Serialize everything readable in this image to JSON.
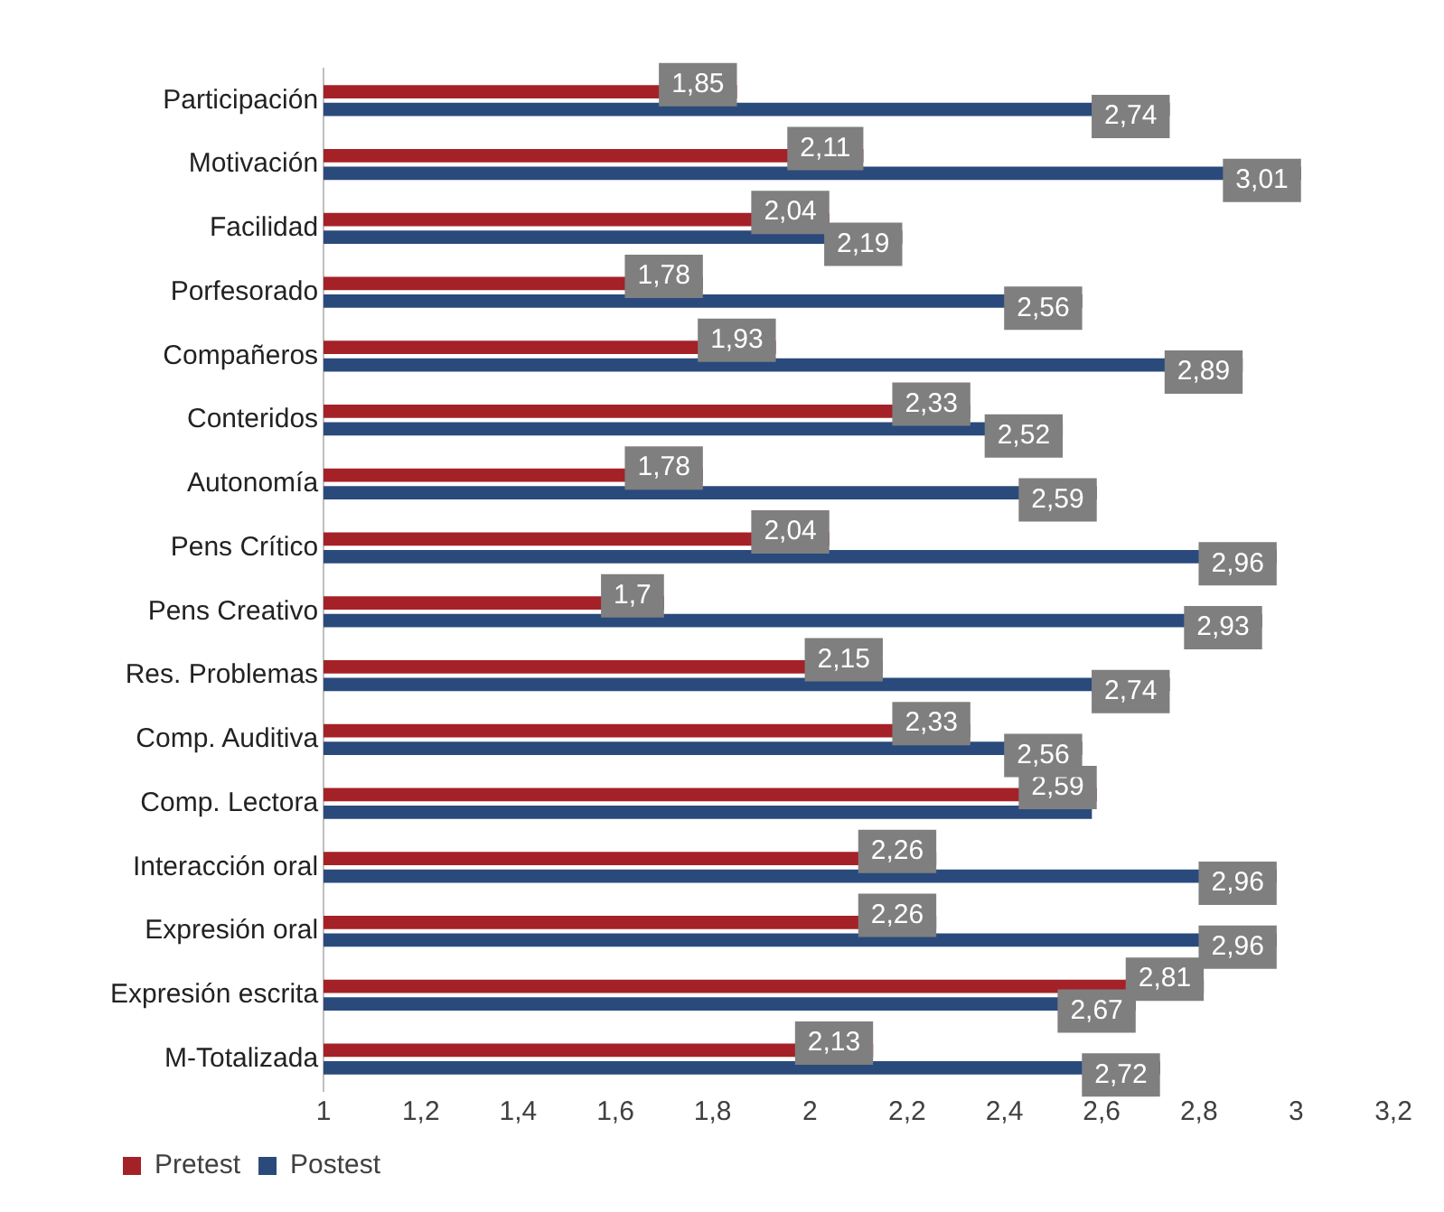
{
  "chart_data": {
    "type": "bar",
    "orientation": "horizontal",
    "categories": [
      "Participación",
      "Motivación",
      "Facilidad",
      "Porfesorado",
      "Compañeros",
      "Conteridos",
      "Autonomía",
      "Pens Crítico",
      "Pens Creativo",
      "Res. Problemas",
      "Comp. Auditiva",
      "Comp. Lectora",
      "Interacción oral",
      "Expresión oral",
      "Expresión escrita",
      "M-Totalizada"
    ],
    "series": [
      {
        "name": "Pretest",
        "color": "#a52128",
        "values": [
          1.85,
          2.11,
          2.04,
          1.78,
          1.93,
          2.33,
          1.78,
          2.04,
          1.7,
          2.15,
          2.33,
          2.59,
          2.26,
          2.26,
          2.81,
          2.13
        ],
        "value_labels": [
          "1,85",
          "2,11",
          "2,04",
          "1,78",
          "1,93",
          "2,33",
          "1,78",
          "2,04",
          "1,7",
          "2,15",
          "2,33",
          "2,59",
          "2,26",
          "2,26",
          "2,81",
          "2,13"
        ]
      },
      {
        "name": "Postest",
        "color": "#2a4a7c",
        "values": [
          2.74,
          3.01,
          2.19,
          2.56,
          2.89,
          2.52,
          2.59,
          2.96,
          2.93,
          2.74,
          2.56,
          2.58,
          2.96,
          2.96,
          2.67,
          2.72
        ],
        "value_labels": [
          "2,74",
          "3,01",
          "2,19",
          "2,56",
          "2,89",
          "2,52",
          "2,59",
          "2,96",
          "2,93",
          "2,74",
          "2,56",
          null,
          "2,96",
          "2,96",
          "2,67",
          "2,72"
        ]
      }
    ],
    "xlim": [
      1,
      3.2
    ],
    "xticks": [
      1,
      {
        "value": 1.2,
        "label": "1,2"
      },
      {
        "value": 1.4,
        "label": "1,4"
      },
      {
        "value": 1.6,
        "label": "1,6"
      },
      {
        "value": 1.8,
        "label": "1,8"
      },
      2,
      {
        "value": 2.2,
        "label": "2,2"
      },
      {
        "value": 2.4,
        "label": "2,4"
      },
      {
        "value": 2.6,
        "label": "2,6"
      },
      {
        "value": 2.8,
        "label": "2,8"
      },
      3,
      {
        "value": 3.2,
        "label": "3,2"
      }
    ],
    "grid": false,
    "legend": "bottom left"
  }
}
